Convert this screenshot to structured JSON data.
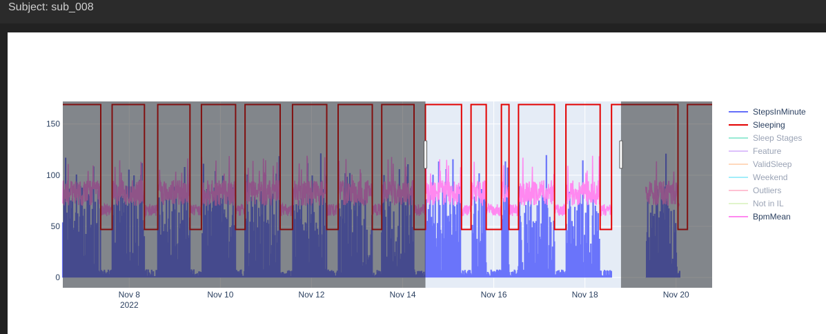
{
  "header": {
    "title": "Subject: sub_008"
  },
  "chart_data": {
    "type": "line",
    "x_range": [
      "2022-11-06 13:00",
      "2022-11-20 19:00"
    ],
    "y_range": [
      -10,
      172
    ],
    "yticks": [
      0,
      50,
      100,
      150
    ],
    "xticks": [
      {
        "date": "2022-11-08",
        "label": "Nov 8",
        "sublabel": "2022"
      },
      {
        "date": "2022-11-10",
        "label": "Nov 10",
        "sublabel": ""
      },
      {
        "date": "2022-11-12",
        "label": "Nov 12",
        "sublabel": ""
      },
      {
        "date": "2022-11-14",
        "label": "Nov 14",
        "sublabel": ""
      },
      {
        "date": "2022-11-16",
        "label": "Nov 16",
        "sublabel": ""
      },
      {
        "date": "2022-11-18",
        "label": "Nov 18",
        "sublabel": ""
      },
      {
        "date": "2022-11-20",
        "label": "Nov 20",
        "sublabel": ""
      }
    ],
    "highlight_window": [
      "2022-11-14 12:00",
      "2022-11-18 19:00"
    ],
    "data_gap": [
      "2022-11-18 14:00",
      "2022-11-19 08:00"
    ],
    "sleep_high": 169,
    "sleep_low": 47,
    "sleeping_low_periods": [
      [
        "2022-11-07 09:00",
        "2022-11-07 15:00"
      ],
      [
        "2022-11-08 08:00",
        "2022-11-08 15:00"
      ],
      [
        "2022-11-09 08:00",
        "2022-11-09 14:00"
      ],
      [
        "2022-11-10 08:00",
        "2022-11-10 13:00"
      ],
      [
        "2022-11-11 07:30",
        "2022-11-11 14:00"
      ],
      [
        "2022-11-12 08:00",
        "2022-11-12 14:00"
      ],
      [
        "2022-11-13 08:00",
        "2022-11-13 13:00"
      ],
      [
        "2022-11-14 06:00",
        "2022-11-14 12:00"
      ],
      [
        "2022-11-15 07:00",
        "2022-11-15 12:00"
      ],
      [
        "2022-11-15 20:00",
        "2022-11-16 04:00"
      ],
      [
        "2022-11-16 08:00",
        "2022-11-16 13:00"
      ],
      [
        "2022-11-17 08:00",
        "2022-11-17 14:00"
      ],
      [
        "2022-11-18 08:00",
        "2022-11-18 14:00"
      ],
      [
        "2022-11-20 01:00",
        "2022-11-20 06:00"
      ]
    ],
    "series": [
      {
        "name": "StepsInMinute",
        "color": "#636efa",
        "visible": true
      },
      {
        "name": "Sleeping",
        "color": "#e30000",
        "visible": true
      },
      {
        "name": "Sleep Stages",
        "color": "#00cc96",
        "visible": false
      },
      {
        "name": "Feature",
        "color": "#ab63fa",
        "visible": false
      },
      {
        "name": "ValidSleep",
        "color": "#ffa15a",
        "visible": false
      },
      {
        "name": "Weekend",
        "color": "#19d3f3",
        "visible": false
      },
      {
        "name": "Outliers",
        "color": "#ff6692",
        "visible": false
      },
      {
        "name": "Not in IL",
        "color": "#b6e880",
        "visible": false
      },
      {
        "name": "BpmMean",
        "color": "#ff88f0",
        "visible": true
      }
    ],
    "grid": true,
    "legend_position": "right"
  }
}
